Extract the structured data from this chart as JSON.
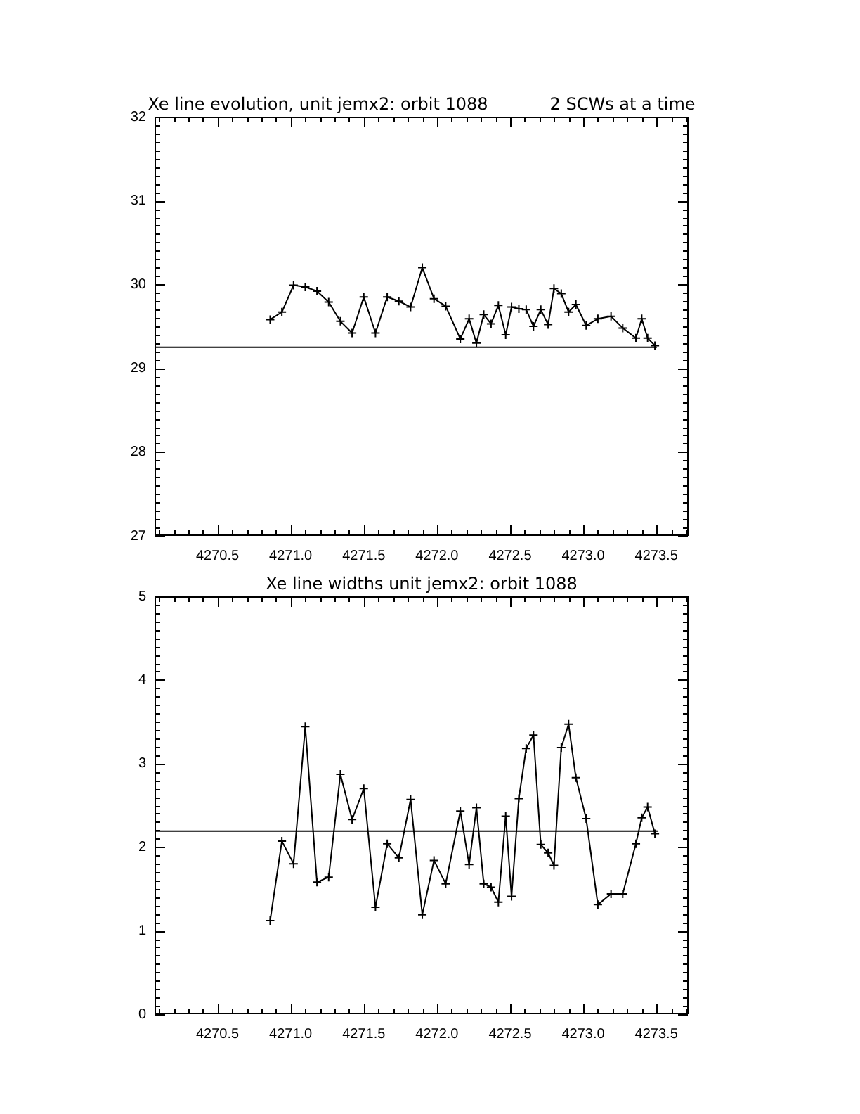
{
  "chart_data": [
    {
      "type": "line",
      "title": "Xe line evolution, unit jemx2: orbit 1088",
      "subtitle": "2 SCWs at a time",
      "x": [
        4270.86,
        4270.94,
        4271.02,
        4271.1,
        4271.18,
        4271.26,
        4271.34,
        4271.42,
        4271.5,
        4271.58,
        4271.66,
        4271.74,
        4271.82,
        4271.9,
        4271.98,
        4272.06,
        4272.16,
        4272.22,
        4272.27,
        4272.32,
        4272.37,
        4272.42,
        4272.47,
        4272.51,
        4272.56,
        4272.61,
        4272.66,
        4272.71,
        4272.76,
        4272.8,
        4272.85,
        4272.9,
        4272.95,
        4273.02,
        4273.1,
        4273.19,
        4273.27,
        4273.36,
        4273.4,
        4273.44,
        4273.49
      ],
      "series": [
        {
          "color": "#000000",
          "values": [
            29.58,
            29.67,
            29.99,
            29.97,
            29.92,
            29.79,
            29.56,
            29.42,
            29.85,
            29.42,
            29.85,
            29.8,
            29.73,
            30.2,
            29.83,
            29.74,
            29.35,
            29.59,
            29.3,
            29.64,
            29.53,
            29.75,
            29.4,
            29.73,
            29.71,
            29.7,
            29.5,
            29.7,
            29.52,
            29.95,
            29.89,
            29.67,
            29.76,
            29.51,
            29.59,
            29.62,
            29.48,
            29.36,
            29.59,
            29.36,
            29.27
          ]
        },
        {
          "color": "#000000",
          "x": [
            4270.07,
            4273.5
          ],
          "values": [
            29.25,
            29.25
          ],
          "marker": "none"
        }
      ],
      "xlim": [
        4270.07,
        4273.72
      ],
      "xticks": [
        {
          "value": 4270.1,
          "label": null
        },
        {
          "value": 4270.2,
          "label": null
        },
        {
          "value": 4270.3,
          "label": null
        },
        {
          "value": 4270.4,
          "label": null
        },
        4270.5,
        {
          "value": 4270.6,
          "label": null
        },
        {
          "value": 4270.7,
          "label": null
        },
        {
          "value": 4270.8,
          "label": null
        },
        {
          "value": 4270.9,
          "label": null
        },
        {
          "value": 4271,
          "label": "4271.0"
        },
        {
          "value": 4271.1,
          "label": null
        },
        {
          "value": 4271.2,
          "label": null
        },
        {
          "value": 4271.3,
          "label": null
        },
        {
          "value": 4271.4,
          "label": null
        },
        4271.5,
        {
          "value": 4271.6,
          "label": null
        },
        {
          "value": 4271.7,
          "label": null
        },
        {
          "value": 4271.8,
          "label": null
        },
        {
          "value": 4271.9,
          "label": null
        },
        {
          "value": 4272,
          "label": "4272.0"
        },
        {
          "value": 4272.1,
          "label": null
        },
        {
          "value": 4272.2,
          "label": null
        },
        {
          "value": 4272.3,
          "label": null
        },
        {
          "value": 4272.4,
          "label": null
        },
        4272.5,
        {
          "value": 4272.6,
          "label": null
        },
        {
          "value": 4272.7,
          "label": null
        },
        {
          "value": 4272.8,
          "label": null
        },
        {
          "value": 4272.9,
          "label": null
        },
        {
          "value": 4273,
          "label": "4273.0"
        },
        {
          "value": 4273.1,
          "label": null
        },
        {
          "value": 4273.2,
          "label": null
        },
        {
          "value": 4273.3,
          "label": null
        },
        {
          "value": 4273.4,
          "label": null
        },
        4273.5,
        {
          "value": 4273.6,
          "label": null
        },
        {
          "value": 4273.7,
          "label": null
        }
      ],
      "ylim": [
        27,
        32
      ],
      "yticks": [
        27,
        {
          "value": 27.1,
          "label": null
        },
        {
          "value": 27.2,
          "label": null
        },
        {
          "value": 27.3,
          "label": null
        },
        {
          "value": 27.4,
          "label": null
        },
        {
          "value": 27.5,
          "label": null
        },
        {
          "value": 27.6,
          "label": null
        },
        {
          "value": 27.7,
          "label": null
        },
        {
          "value": 27.8,
          "label": null
        },
        {
          "value": 27.9,
          "label": null
        },
        28,
        {
          "value": 28.1,
          "label": null
        },
        {
          "value": 28.2,
          "label": null
        },
        {
          "value": 28.3,
          "label": null
        },
        {
          "value": 28.4,
          "label": null
        },
        {
          "value": 28.5,
          "label": null
        },
        {
          "value": 28.6,
          "label": null
        },
        {
          "value": 28.7,
          "label": null
        },
        {
          "value": 28.8,
          "label": null
        },
        {
          "value": 28.9,
          "label": null
        },
        29,
        {
          "value": 29.1,
          "label": null
        },
        {
          "value": 29.2,
          "label": null
        },
        {
          "value": 29.3,
          "label": null
        },
        {
          "value": 29.4,
          "label": null
        },
        {
          "value": 29.5,
          "label": null
        },
        {
          "value": 29.6,
          "label": null
        },
        {
          "value": 29.7,
          "label": null
        },
        {
          "value": 29.8,
          "label": null
        },
        {
          "value": 29.9,
          "label": null
        },
        30,
        {
          "value": 30.1,
          "label": null
        },
        {
          "value": 30.2,
          "label": null
        },
        {
          "value": 30.3,
          "label": null
        },
        {
          "value": 30.4,
          "label": null
        },
        {
          "value": 30.5,
          "label": null
        },
        {
          "value": 30.6,
          "label": null
        },
        {
          "value": 30.7,
          "label": null
        },
        {
          "value": 30.8,
          "label": null
        },
        {
          "value": 30.9,
          "label": null
        },
        31,
        {
          "value": 31.1,
          "label": null
        },
        {
          "value": 31.2,
          "label": null
        },
        {
          "value": 31.3,
          "label": null
        },
        {
          "value": 31.4,
          "label": null
        },
        {
          "value": 31.5,
          "label": null
        },
        {
          "value": 31.6,
          "label": null
        },
        {
          "value": 31.7,
          "label": null
        },
        {
          "value": 31.8,
          "label": null
        },
        {
          "value": 31.9,
          "label": null
        },
        32
      ],
      "grid": false,
      "legend": false,
      "marker": "cross",
      "line_style": "solid"
    },
    {
      "type": "line",
      "title": "Xe line widths unit jemx2: orbit 1088",
      "x": [
        4270.86,
        4270.94,
        4271.02,
        4271.1,
        4271.18,
        4271.26,
        4271.34,
        4271.42,
        4271.5,
        4271.58,
        4271.66,
        4271.74,
        4271.82,
        4271.9,
        4271.98,
        4272.06,
        4272.16,
        4272.22,
        4272.27,
        4272.32,
        4272.37,
        4272.42,
        4272.47,
        4272.51,
        4272.56,
        4272.61,
        4272.66,
        4272.71,
        4272.76,
        4272.8,
        4272.85,
        4272.9,
        4272.95,
        4273.02,
        4273.1,
        4273.19,
        4273.27,
        4273.36,
        4273.4,
        4273.44,
        4273.49
      ],
      "series": [
        {
          "color": "#000000",
          "values": [
            1.12,
            2.07,
            1.8,
            3.44,
            1.58,
            1.64,
            2.87,
            2.33,
            2.7,
            1.28,
            2.04,
            1.87,
            2.57,
            1.19,
            1.84,
            1.56,
            2.43,
            1.79,
            2.47,
            1.56,
            1.52,
            1.34,
            2.37,
            1.41,
            2.58,
            3.18,
            3.34,
            2.03,
            1.93,
            1.78,
            3.19,
            3.47,
            2.83,
            2.34,
            1.31,
            1.44,
            1.44,
            2.04,
            2.35,
            2.48,
            2.16
          ]
        },
        {
          "color": "#000000",
          "x": [
            4270.07,
            4273.51
          ],
          "values": [
            2.19,
            2.19
          ],
          "marker": "none"
        }
      ],
      "xlim": [
        4270.07,
        4273.72
      ],
      "xticks": [
        {
          "value": 4270.1,
          "label": null
        },
        {
          "value": 4270.2,
          "label": null
        },
        {
          "value": 4270.3,
          "label": null
        },
        {
          "value": 4270.4,
          "label": null
        },
        4270.5,
        {
          "value": 4270.6,
          "label": null
        },
        {
          "value": 4270.7,
          "label": null
        },
        {
          "value": 4270.8,
          "label": null
        },
        {
          "value": 4270.9,
          "label": null
        },
        {
          "value": 4271,
          "label": "4271.0"
        },
        {
          "value": 4271.1,
          "label": null
        },
        {
          "value": 4271.2,
          "label": null
        },
        {
          "value": 4271.3,
          "label": null
        },
        {
          "value": 4271.4,
          "label": null
        },
        4271.5,
        {
          "value": 4271.6,
          "label": null
        },
        {
          "value": 4271.7,
          "label": null
        },
        {
          "value": 4271.8,
          "label": null
        },
        {
          "value": 4271.9,
          "label": null
        },
        {
          "value": 4272,
          "label": "4272.0"
        },
        {
          "value": 4272.1,
          "label": null
        },
        {
          "value": 4272.2,
          "label": null
        },
        {
          "value": 4272.3,
          "label": null
        },
        {
          "value": 4272.4,
          "label": null
        },
        4272.5,
        {
          "value": 4272.6,
          "label": null
        },
        {
          "value": 4272.7,
          "label": null
        },
        {
          "value": 4272.8,
          "label": null
        },
        {
          "value": 4272.9,
          "label": null
        },
        {
          "value": 4273,
          "label": "4273.0"
        },
        {
          "value": 4273.1,
          "label": null
        },
        {
          "value": 4273.2,
          "label": null
        },
        {
          "value": 4273.3,
          "label": null
        },
        {
          "value": 4273.4,
          "label": null
        },
        4273.5,
        {
          "value": 4273.6,
          "label": null
        },
        {
          "value": 4273.7,
          "label": null
        }
      ],
      "ylim": [
        0,
        5
      ],
      "yticks": [
        0,
        {
          "value": 0.1,
          "label": null
        },
        {
          "value": 0.2,
          "label": null
        },
        {
          "value": 0.3,
          "label": null
        },
        {
          "value": 0.4,
          "label": null
        },
        {
          "value": 0.5,
          "label": null
        },
        {
          "value": 0.6,
          "label": null
        },
        {
          "value": 0.7,
          "label": null
        },
        {
          "value": 0.8,
          "label": null
        },
        {
          "value": 0.9,
          "label": null
        },
        1,
        {
          "value": 1.1,
          "label": null
        },
        {
          "value": 1.2,
          "label": null
        },
        {
          "value": 1.3,
          "label": null
        },
        {
          "value": 1.4,
          "label": null
        },
        {
          "value": 1.5,
          "label": null
        },
        {
          "value": 1.6,
          "label": null
        },
        {
          "value": 1.7,
          "label": null
        },
        {
          "value": 1.8,
          "label": null
        },
        {
          "value": 1.9,
          "label": null
        },
        2,
        {
          "value": 2.1,
          "label": null
        },
        {
          "value": 2.2,
          "label": null
        },
        {
          "value": 2.3,
          "label": null
        },
        {
          "value": 2.4,
          "label": null
        },
        {
          "value": 2.5,
          "label": null
        },
        {
          "value": 2.6,
          "label": null
        },
        {
          "value": 2.7,
          "label": null
        },
        {
          "value": 2.8,
          "label": null
        },
        {
          "value": 2.9,
          "label": null
        },
        3,
        {
          "value": 3.1,
          "label": null
        },
        {
          "value": 3.2,
          "label": null
        },
        {
          "value": 3.3,
          "label": null
        },
        {
          "value": 3.4,
          "label": null
        },
        {
          "value": 3.5,
          "label": null
        },
        {
          "value": 3.6,
          "label": null
        },
        {
          "value": 3.7,
          "label": null
        },
        {
          "value": 3.8,
          "label": null
        },
        {
          "value": 3.9,
          "label": null
        },
        4,
        {
          "value": 4.1,
          "label": null
        },
        {
          "value": 4.2,
          "label": null
        },
        {
          "value": 4.3,
          "label": null
        },
        {
          "value": 4.4,
          "label": null
        },
        {
          "value": 4.5,
          "label": null
        },
        {
          "value": 4.6,
          "label": null
        },
        {
          "value": 4.7,
          "label": null
        },
        {
          "value": 4.8,
          "label": null
        },
        {
          "value": 4.9,
          "label": null
        },
        5
      ],
      "grid": false,
      "legend": false,
      "marker": "cross",
      "line_style": "solid"
    }
  ]
}
